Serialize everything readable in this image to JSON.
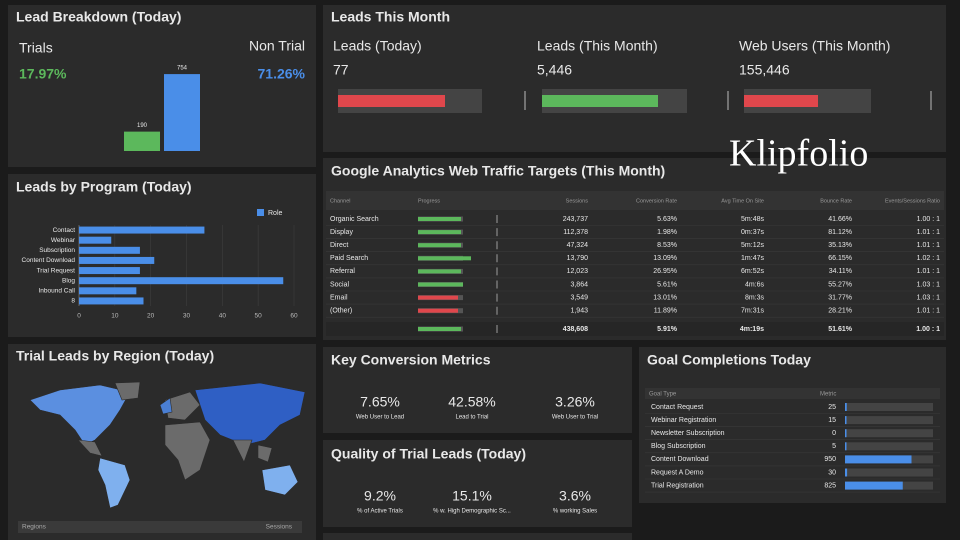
{
  "chart_data": [
    {
      "type": "bar",
      "title": "Lead Breakdown (Today)",
      "categories": [
        "Trials",
        "Non Trial"
      ],
      "kpi_values": [
        "17.97%",
        "71.26%"
      ],
      "values": [
        190,
        754
      ],
      "colors": [
        "#5cb85c",
        "#4a8ee8"
      ]
    },
    {
      "type": "hbar",
      "title": "Leads by Program (Today)",
      "categories": [
        "Contact",
        "Webinar",
        "Subscription",
        "Content Download",
        "Trial Request",
        "Blog",
        "Inbound Call",
        "8"
      ],
      "series": [
        {
          "name": "Role",
          "color": "#4a8ee8",
          "values": [
            35,
            9,
            17,
            21,
            17,
            57,
            16,
            18
          ]
        }
      ],
      "xlim": [
        0,
        60
      ],
      "xticks": [
        0,
        10,
        20,
        30,
        40,
        50,
        60
      ],
      "grid": true,
      "legend": "top-right"
    }
  ],
  "region_panel": {
    "title": "Trial Leads by Region (Today)",
    "columns": [
      "Regions",
      "Sessions"
    ]
  },
  "leads_month": {
    "title": "Leads This Month",
    "metrics": [
      {
        "label": "Leads (Today)",
        "value": "77"
      },
      {
        "label": "Leads (This Month)",
        "value": "5,446"
      },
      {
        "label": "Web Users (This Month)",
        "value": "155,446"
      }
    ]
  },
  "brand": "Klipfolio",
  "ga_table": {
    "title": "Google Analytics Web Traffic Targets (This Month)",
    "columns": [
      "Channel",
      "Progress",
      "Sessions",
      "Conversion Rate",
      "Avg Time On Site",
      "Bounce Rate",
      "Events/Sessions Ratio"
    ],
    "rows": [
      [
        "Organic Search",
        "243,737",
        "5.63%",
        "5m:48s",
        "41.66%",
        "1.00 : 1"
      ],
      [
        "Display",
        "112,378",
        "1.98%",
        "0m:37s",
        "81.12%",
        "1.01 : 1"
      ],
      [
        "Direct",
        "47,324",
        "8.53%",
        "5m:12s",
        "35.13%",
        "1.01 : 1"
      ],
      [
        "Paid Search",
        "13,790",
        "13.09%",
        "1m:47s",
        "66.15%",
        "1.02 : 1"
      ],
      [
        "Referral",
        "12,023",
        "26.95%",
        "6m:52s",
        "34.11%",
        "1.01 : 1"
      ],
      [
        "Social",
        "3,864",
        "5.61%",
        "4m:6s",
        "55.27%",
        "1.03 : 1"
      ],
      [
        "Email",
        "3,549",
        "13.01%",
        "8m:3s",
        "31.77%",
        "1.03 : 1"
      ],
      [
        "(Other)",
        "1,943",
        "11.89%",
        "7m:31s",
        "28.21%",
        "1.01 : 1"
      ]
    ],
    "total": [
      "438,608",
      "5.91%",
      "4m:19s",
      "51.61%",
      "1.00 : 1"
    ]
  },
  "key_conversion": {
    "title": "Key Conversion Metrics",
    "metrics": [
      {
        "value": "7.65%",
        "label": "Web User to Lead"
      },
      {
        "value": "42.58%",
        "label": "Lead to Trial"
      },
      {
        "value": "3.26%",
        "label": "Web User to Trial"
      }
    ]
  },
  "quality": {
    "title": "Quality of Trial Leads (Today)",
    "metrics": [
      {
        "value": "9.2%",
        "label": "% of Active Trials"
      },
      {
        "value": "15.1%",
        "label": "% w. High Demographic Sc..."
      },
      {
        "value": "3.6%",
        "label": "% working Sales"
      }
    ]
  },
  "goals": {
    "title": "Goal Completions Today",
    "columns": [
      "Goal Type",
      "Metric"
    ],
    "rows": [
      {
        "name": "Contact Request",
        "value": 25
      },
      {
        "name": "Webinar Registration",
        "value": 15
      },
      {
        "name": "Newsletter Subscription",
        "value": 0
      },
      {
        "name": "Blog Subscription",
        "value": 5
      },
      {
        "name": "Content Download",
        "value": 950
      },
      {
        "name": "Request A Demo",
        "value": 30
      },
      {
        "name": "Trial Registration",
        "value": 825
      }
    ]
  }
}
